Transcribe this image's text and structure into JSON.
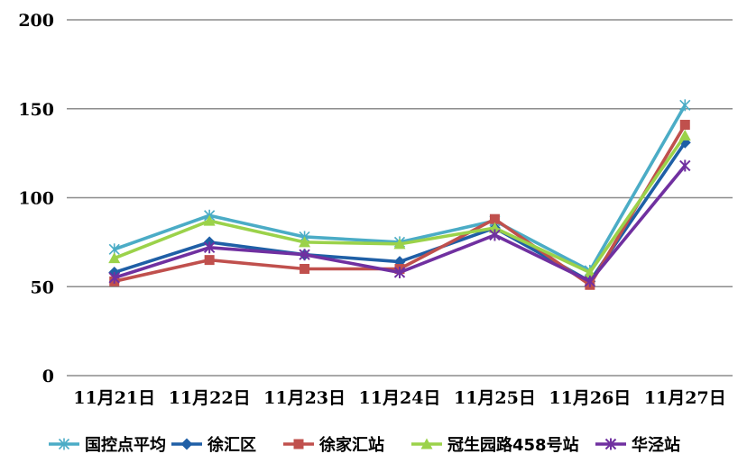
{
  "chart_data": {
    "type": "line",
    "categories": [
      "11月21日",
      "11月22日",
      "11月23日",
      "11月24日",
      "11月25日",
      "11月26日",
      "11月27日"
    ],
    "ylim": [
      0,
      200
    ],
    "yticks": [
      0,
      50,
      100,
      150,
      200
    ],
    "grid": true,
    "legend_position": "bottom",
    "series": [
      {
        "name": "国控点平均",
        "marker": "asterisk",
        "color": "#4bacc6",
        "values": [
          71,
          90,
          78,
          75,
          87,
          59,
          152
        ]
      },
      {
        "name": "徐汇区",
        "marker": "diamond",
        "color": "#1f5fa6",
        "values": [
          58,
          75,
          68,
          64,
          83,
          53,
          131
        ]
      },
      {
        "name": "徐家汇站",
        "marker": "square",
        "color": "#c0504d",
        "values": [
          53,
          65,
          60,
          60,
          88,
          51,
          141
        ]
      },
      {
        "name": "冠生园路458号站",
        "marker": "triangle",
        "color": "#9bd24a",
        "values": [
          66,
          87,
          75,
          74,
          83,
          58,
          135
        ]
      },
      {
        "name": "华泾站",
        "marker": "x",
        "color": "#7030a0",
        "values": [
          55,
          72,
          68,
          58,
          79,
          53,
          118
        ]
      }
    ]
  }
}
